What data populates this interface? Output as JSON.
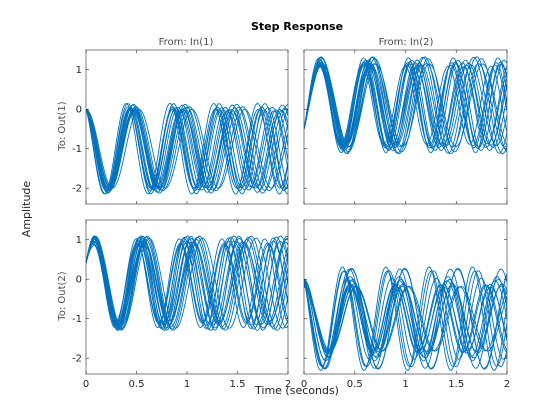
{
  "figure": {
    "title": "Step Response",
    "xlabel": "Time (seconds)",
    "ylabel": "Amplitude",
    "line_color": "#0072BD",
    "axis_color": "#262626"
  },
  "chart_data": {
    "type": "line",
    "title": "Step Response",
    "xlabel": "Time (seconds)",
    "ylabel": "Amplitude",
    "xlim": [
      0,
      2
    ],
    "ylim": [
      -2.4,
      1.5
    ],
    "xticks": [
      0,
      0.5,
      1,
      1.5,
      2
    ],
    "xtick_labels": [
      "0",
      "0.5",
      "1",
      "1.5",
      "2"
    ],
    "yticks": [
      -2,
      -1,
      0,
      1
    ],
    "ytick_labels": [
      "-2",
      "-1",
      "0",
      "1"
    ],
    "grid": false,
    "columns": [
      "From: In(1)",
      "From: In(2)"
    ],
    "rows": [
      "To: Out(1)",
      "To: Out(2)"
    ],
    "num_responses": 18,
    "panels": [
      {
        "row": "To: Out(1)",
        "col": "From: In(1)",
        "mean": -1.0,
        "amp_min": 0.95,
        "amp_max": 1.15,
        "phase_start": 0.0,
        "freq_min": 1.9,
        "freq_max": 2.35,
        "envelope": [
          -2.25,
          0.15
        ]
      },
      {
        "row": "To: Out(1)",
        "col": "From: In(2)",
        "mean": 0.1,
        "amp_min": 0.95,
        "amp_max": 1.25,
        "phase_start": -0.5,
        "freq_min": 1.9,
        "freq_max": 2.35,
        "envelope": [
          -1.1,
          1.3
        ]
      },
      {
        "row": "To: Out(2)",
        "col": "From: In(1)",
        "mean": -0.1,
        "amp_min": 0.95,
        "amp_max": 1.2,
        "phase_start": 0.4,
        "freq_min": 1.9,
        "freq_max": 2.35,
        "envelope": [
          -1.3,
          1.1
        ]
      },
      {
        "row": "To: Out(2)",
        "col": "From: In(2)",
        "mean": -1.0,
        "amp_min": 0.8,
        "amp_max": 1.35,
        "phase_start": 0.0,
        "freq_min": 1.9,
        "freq_max": 2.35,
        "envelope": [
          -2.35,
          0.3
        ]
      }
    ]
  }
}
